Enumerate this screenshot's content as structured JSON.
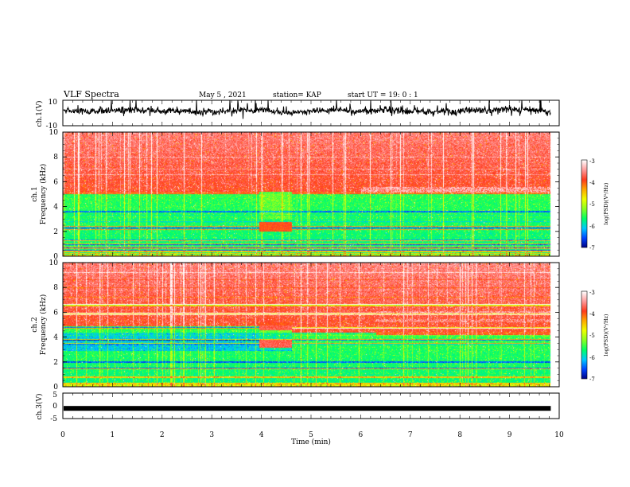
{
  "header": {
    "title": "VLF Spectra",
    "date": "May 5 , 2021",
    "station": "station= KAP",
    "start": "start UT = 19: 0 : 1"
  },
  "colors": {
    "scale": [
      "#00007f",
      "#0044ff",
      "#00c8ff",
      "#00ff66",
      "#88ff22",
      "#eeff00",
      "#ffaa00",
      "#ff3a1e",
      "#ff9a9a",
      "#ffffff"
    ],
    "waveform": "#000000"
  },
  "chart_data": [
    {
      "type": "line",
      "panel": "ch1-waveform",
      "ylabel": "ch.1(V)",
      "ylim": [
        -10,
        10
      ],
      "ytick_labels": [
        "10",
        "-10"
      ],
      "xlim": [
        0,
        10
      ],
      "x_extent": 9.83,
      "description_values": {
        "amplitude_mean": 2,
        "amplitude_range": [
          -9,
          10
        ]
      }
    },
    {
      "type": "heatmap",
      "panel": "ch1-spectrogram",
      "ylabel_line1": "ch.1",
      "ylabel_line2": "Frequency (kHz)",
      "ylim": [
        0,
        10
      ],
      "yticks": [
        0,
        2,
        4,
        6,
        8,
        10
      ],
      "xlim": [
        0,
        10
      ],
      "x_extent": 9.83,
      "colorbar": {
        "label": "log(PSD)(V²/Hz)",
        "range": [
          -7,
          -3
        ],
        "ticks": [
          -3,
          -4,
          -5,
          -6,
          -7
        ]
      },
      "segments": [
        {
          "t": [
            0.0,
            3.95
          ],
          "boundary_khz": 5.0
        },
        {
          "t": [
            3.95,
            4.6
          ],
          "boundary_khz": 5.2,
          "event": "strong emission 2.0-2.8 kHz"
        },
        {
          "t": [
            4.6,
            6.0
          ],
          "boundary_khz": 5.0
        },
        {
          "t": [
            6.0,
            6.7
          ],
          "boundary_khz": 5.0,
          "event": "band 5.2-5.6 kHz"
        },
        {
          "t": [
            6.7,
            9.83
          ],
          "boundary_khz": 5.0,
          "event": "band 5.1-5.6 kHz"
        }
      ],
      "lines_khz": [
        0.2,
        0.45,
        0.7,
        1.0,
        1.3,
        2.2,
        2.4,
        3.6
      ]
    },
    {
      "type": "heatmap",
      "panel": "ch2-spectrogram",
      "ylabel_line1": "ch.2",
      "ylabel_line2": "Frequency (kHz)",
      "ylim": [
        0,
        10
      ],
      "yticks": [
        0,
        2,
        4,
        6,
        8,
        10
      ],
      "xlim": [
        0,
        10
      ],
      "x_extent": 9.83,
      "colorbar": {
        "label": "log(PSD)(V²/Hz)",
        "range": [
          -7,
          -3
        ],
        "ticks": [
          -3,
          -4,
          -5,
          -6,
          -7
        ]
      },
      "segments": [
        {
          "t": [
            0.0,
            3.95
          ],
          "boundary_khz": 4.9
        },
        {
          "t": [
            3.95,
            4.6
          ],
          "boundary_khz": 5.0,
          "event": "strong emission 4.6-5.2 kHz and 3.2-3.8 kHz"
        },
        {
          "t": [
            4.6,
            6.3
          ],
          "boundary_khz": 4.4
        },
        {
          "t": [
            6.3,
            9.83
          ],
          "boundary_khz": 4.2,
          "event": "bands 5.3 and 6.0 kHz"
        }
      ],
      "lines_khz": [
        0.3,
        0.8,
        1.5,
        2.0,
        3.5,
        3.8,
        4.8,
        5.9,
        6.6
      ]
    },
    {
      "type": "line",
      "panel": "ch3-waveform",
      "ylabel": "ch.3(V)",
      "ylim": [
        -5,
        5
      ],
      "ytick_labels": [
        "5",
        "0",
        "-5"
      ],
      "xlim": [
        0,
        10
      ],
      "x_extent": 9.83,
      "level_v": -1.0
    }
  ],
  "xaxis": {
    "label": "Time (min)",
    "ticks": [
      "0",
      "1",
      "2",
      "3",
      "4",
      "5",
      "6",
      "7",
      "8",
      "9",
      "10"
    ]
  }
}
